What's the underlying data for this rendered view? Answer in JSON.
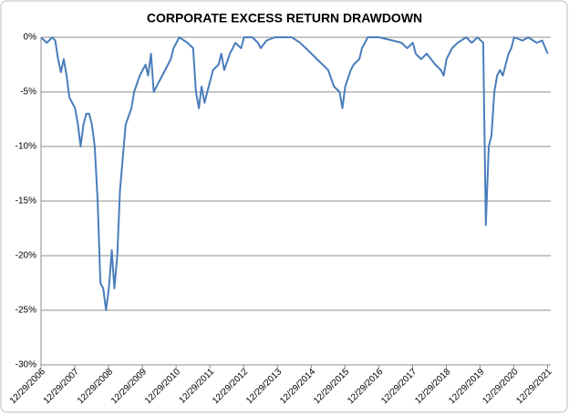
{
  "chart_data": {
    "type": "line",
    "title": "CORPORATE EXCESS RETURN DRAWDOWN",
    "x": [
      "2006-12-29",
      "2007-03-01",
      "2007-05-01",
      "2007-06-01",
      "2007-07-01",
      "2007-08-01",
      "2007-09-01",
      "2007-10-01",
      "2007-11-01",
      "2008-01-01",
      "2008-02-01",
      "2008-03-01",
      "2008-04-01",
      "2008-05-01",
      "2008-06-01",
      "2008-07-01",
      "2008-08-01",
      "2008-09-01",
      "2008-10-01",
      "2008-11-01",
      "2008-12-01",
      "2009-01-01",
      "2009-02-01",
      "2009-03-01",
      "2009-04-01",
      "2009-05-01",
      "2009-06-01",
      "2009-07-01",
      "2009-09-01",
      "2009-10-01",
      "2009-12-01",
      "2010-02-01",
      "2010-03-01",
      "2010-04-01",
      "2010-05-01",
      "2010-07-01",
      "2010-09-01",
      "2010-11-01",
      "2010-12-01",
      "2011-02-01",
      "2011-05-01",
      "2011-07-01",
      "2011-08-01",
      "2011-09-01",
      "2011-10-01",
      "2011-11-01",
      "2011-12-01",
      "2012-02-01",
      "2012-04-01",
      "2012-05-01",
      "2012-06-01",
      "2012-08-01",
      "2012-10-01",
      "2012-12-01",
      "2013-01-01",
      "2013-04-01",
      "2013-06-01",
      "2013-07-01",
      "2013-09-01",
      "2013-12-01",
      "2014-06-01",
      "2014-09-01",
      "2014-11-01",
      "2015-01-01",
      "2015-03-01",
      "2015-05-01",
      "2015-07-01",
      "2015-09-01",
      "2015-11-01",
      "2015-12-01",
      "2016-01-01",
      "2016-03-01",
      "2016-04-01",
      "2016-06-01",
      "2016-07-01",
      "2016-09-01",
      "2017-01-01",
      "2017-06-01",
      "2017-09-01",
      "2017-11-01",
      "2018-01-01",
      "2018-02-01",
      "2018-04-01",
      "2018-06-01",
      "2018-09-01",
      "2018-11-01",
      "2018-12-01",
      "2019-01-01",
      "2019-03-01",
      "2019-05-01",
      "2019-08-01",
      "2019-10-01",
      "2019-12-01",
      "2020-02-01",
      "2020-03-01",
      "2020-04-01",
      "2020-05-01",
      "2020-06-01",
      "2020-07-01",
      "2020-08-01",
      "2020-09-01",
      "2020-10-01",
      "2020-11-01",
      "2020-12-01",
      "2021-01-01",
      "2021-04-01",
      "2021-06-01",
      "2021-09-01",
      "2021-11-01",
      "2021-12-29"
    ],
    "series": [
      {
        "name": "Corporate Excess Return Drawdown",
        "color": "#4a7ebb",
        "values": [
          0,
          -0.5,
          0,
          -0.3,
          -2,
          -3.2,
          -2,
          -3.5,
          -5.5,
          -6.5,
          -8,
          -10,
          -8,
          -7,
          -7,
          -8,
          -10,
          -15,
          -22.5,
          -23,
          -25,
          -23,
          -19.5,
          -23,
          -20,
          -14,
          -11,
          -8,
          -6.5,
          -5,
          -3.5,
          -2.5,
          -3.5,
          -1.5,
          -5,
          -4,
          -3,
          -2,
          -1,
          0,
          -0.5,
          -1,
          -5,
          -6.5,
          -4.5,
          -6,
          -5,
          -3,
          -2.5,
          -1.5,
          -3,
          -1.5,
          -0.5,
          -1,
          0,
          0,
          -0.5,
          -1,
          -0.3,
          0,
          0,
          -0.5,
          -1,
          -1.5,
          -2,
          -2.5,
          -3,
          -4.5,
          -5,
          -6.5,
          -4.5,
          -3,
          -2.5,
          -2,
          -1,
          0,
          0,
          -0.3,
          -0.5,
          -1,
          -0.5,
          -1.5,
          -2,
          -1.5,
          -2.5,
          -3,
          -3.5,
          -2,
          -1,
          -0.5,
          0,
          -0.5,
          0,
          -0.5,
          -17.2,
          -10,
          -9,
          -5,
          -3.5,
          -3,
          -3.5,
          -2.5,
          -1.5,
          -1,
          0,
          -0.3,
          0,
          -0.5,
          -0.3,
          -1.5
        ]
      }
    ],
    "ylim": [
      -30,
      0
    ],
    "yticks": [
      {
        "value": 0,
        "label": "0%"
      },
      {
        "value": -5,
        "label": "-5%"
      },
      {
        "value": -10,
        "label": "-10%"
      },
      {
        "value": -15,
        "label": "-15%"
      },
      {
        "value": -20,
        "label": "-20%"
      },
      {
        "value": -25,
        "label": "-25%"
      },
      {
        "value": -30,
        "label": "-30%"
      }
    ],
    "xlim": [
      "2006-12-29",
      "2022-02-01"
    ],
    "xticks": [
      {
        "value": "2006-12-29",
        "label": "12/29/2006"
      },
      {
        "value": "2007-12-29",
        "label": "12/29/2007"
      },
      {
        "value": "2008-12-29",
        "label": "12/29/2008"
      },
      {
        "value": "2009-12-29",
        "label": "12/29/2009"
      },
      {
        "value": "2010-12-29",
        "label": "12/29/2010"
      },
      {
        "value": "2011-12-29",
        "label": "12/29/2011"
      },
      {
        "value": "2012-12-29",
        "label": "12/29/2012"
      },
      {
        "value": "2013-12-29",
        "label": "12/29/2013"
      },
      {
        "value": "2014-12-29",
        "label": "12/29/2014"
      },
      {
        "value": "2015-12-29",
        "label": "12/29/2015"
      },
      {
        "value": "2016-12-29",
        "label": "12/29/2016"
      },
      {
        "value": "2017-12-29",
        "label": "12/29/2017"
      },
      {
        "value": "2018-12-29",
        "label": "12/29/2018"
      },
      {
        "value": "2019-12-29",
        "label": "12/29/2019"
      },
      {
        "value": "2020-12-29",
        "label": "12/29/2020"
      },
      {
        "value": "2021-12-29",
        "label": "12/29/2021"
      }
    ],
    "grid": true
  }
}
